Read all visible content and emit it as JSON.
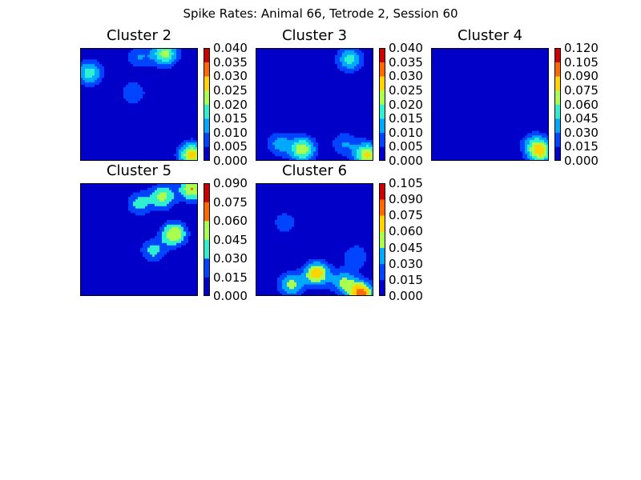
{
  "figure": {
    "suptitle": "Spike Rates: Animal 66, Tetrode 2, Session 60"
  },
  "chart_data": [
    {
      "type": "heatmap",
      "title": "Cluster 2",
      "colorbar_ticks": [
        "0.000",
        "0.005",
        "0.010",
        "0.015",
        "0.020",
        "0.025",
        "0.030",
        "0.035",
        "0.040"
      ],
      "zlim": [
        0,
        0.04
      ],
      "blobs": [
        {
          "x": 0.72,
          "y": 0.05,
          "value": 0.022
        },
        {
          "x": 0.5,
          "y": 0.08,
          "value": 0.01
        },
        {
          "x": 0.08,
          "y": 0.22,
          "value": 0.018
        },
        {
          "x": 0.45,
          "y": 0.4,
          "value": 0.01
        },
        {
          "x": 0.95,
          "y": 0.95,
          "value": 0.028
        }
      ]
    },
    {
      "type": "heatmap",
      "title": "Cluster 3",
      "colorbar_ticks": [
        "0.000",
        "0.005",
        "0.010",
        "0.015",
        "0.020",
        "0.025",
        "0.030",
        "0.035",
        "0.040"
      ],
      "zlim": [
        0,
        0.04
      ],
      "blobs": [
        {
          "x": 0.8,
          "y": 0.1,
          "value": 0.017
        },
        {
          "x": 0.4,
          "y": 0.9,
          "value": 0.024
        },
        {
          "x": 0.2,
          "y": 0.85,
          "value": 0.012
        },
        {
          "x": 0.75,
          "y": 0.85,
          "value": 0.01
        },
        {
          "x": 0.95,
          "y": 0.95,
          "value": 0.026
        }
      ]
    },
    {
      "type": "heatmap",
      "title": "Cluster 4",
      "colorbar_ticks": [
        "0.000",
        "0.015",
        "0.030",
        "0.045",
        "0.060",
        "0.075",
        "0.090",
        "0.105",
        "0.120"
      ],
      "zlim": [
        0,
        0.12
      ],
      "blobs": [
        {
          "x": 0.93,
          "y": 0.92,
          "value": 0.07
        },
        {
          "x": 0.87,
          "y": 0.85,
          "value": 0.03
        }
      ]
    },
    {
      "type": "heatmap",
      "title": "Cluster 5",
      "colorbar_ticks": [
        "0.000",
        "0.015",
        "0.030",
        "0.045",
        "0.060",
        "0.075",
        "0.090"
      ],
      "zlim": [
        0,
        0.09
      ],
      "blobs": [
        {
          "x": 0.8,
          "y": 0.45,
          "value": 0.06
        },
        {
          "x": 0.7,
          "y": 0.12,
          "value": 0.05
        },
        {
          "x": 0.5,
          "y": 0.18,
          "value": 0.035
        },
        {
          "x": 0.62,
          "y": 0.6,
          "value": 0.035
        },
        {
          "x": 0.95,
          "y": 0.05,
          "value": 0.06
        }
      ]
    },
    {
      "type": "heatmap",
      "title": "Cluster 6",
      "colorbar_ticks": [
        "0.000",
        "0.015",
        "0.030",
        "0.045",
        "0.060",
        "0.075",
        "0.090",
        "0.105"
      ],
      "zlim": [
        0,
        0.105
      ],
      "blobs": [
        {
          "x": 0.52,
          "y": 0.8,
          "value": 0.07
        },
        {
          "x": 0.3,
          "y": 0.9,
          "value": 0.05
        },
        {
          "x": 0.75,
          "y": 0.88,
          "value": 0.045
        },
        {
          "x": 0.85,
          "y": 0.65,
          "value": 0.03
        },
        {
          "x": 0.25,
          "y": 0.35,
          "value": 0.025
        },
        {
          "x": 0.9,
          "y": 0.98,
          "value": 0.08
        }
      ]
    }
  ]
}
